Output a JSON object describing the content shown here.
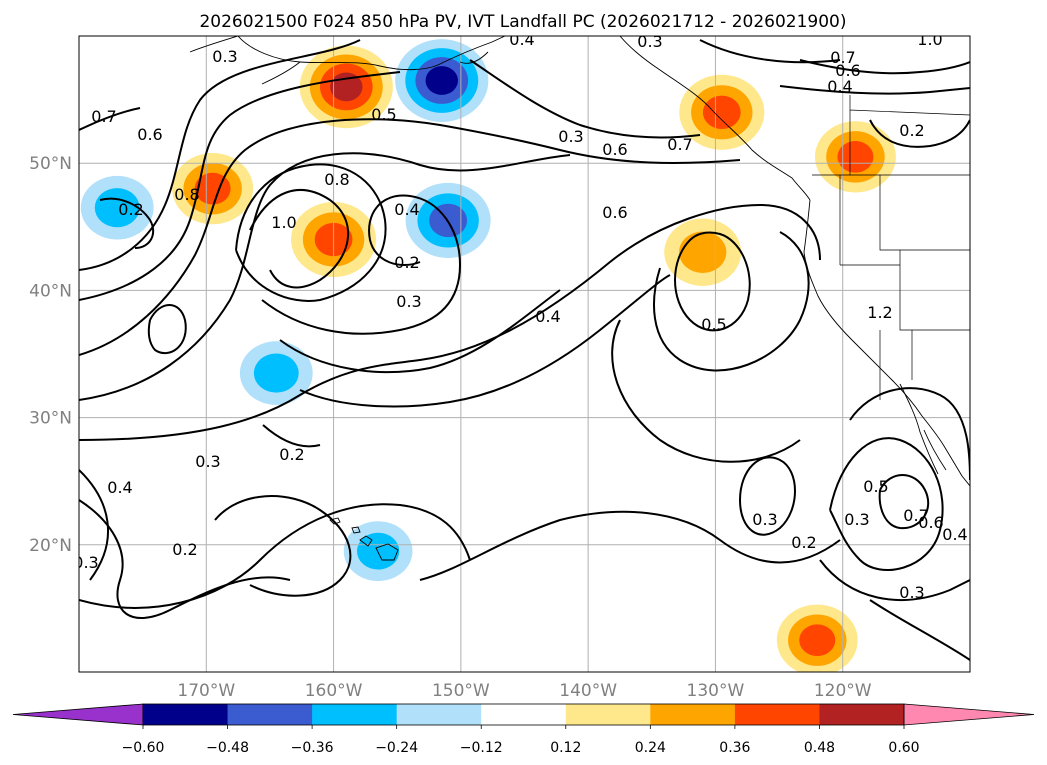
{
  "chart_data": {
    "type": "filled-contour-map",
    "title": "2026021500 F024 850 hPa PV, IVT Landfall PC (2026021712 - 2026021900)",
    "x_axis": {
      "ticks": [
        "170°W",
        "160°W",
        "150°W",
        "140°W",
        "130°W",
        "120°W"
      ],
      "tick_values": [
        -170,
        -160,
        -150,
        -140,
        -130,
        -120
      ],
      "range": [
        -180,
        -110
      ]
    },
    "y_axis": {
      "ticks": [
        "50°N",
        "40°N",
        "30°N",
        "20°N"
      ],
      "tick_values": [
        50,
        40,
        30,
        20
      ],
      "range": [
        10,
        60
      ]
    },
    "grid": true,
    "colorbar": {
      "ticks": [
        "−0.60",
        "−0.48",
        "−0.36",
        "−0.24",
        "−0.12",
        "0.12",
        "0.24",
        "0.36",
        "0.48",
        "0.60"
      ],
      "boundaries": [
        -0.6,
        -0.48,
        -0.36,
        -0.24,
        -0.12,
        0.12,
        0.24,
        0.36,
        0.48,
        0.6
      ],
      "colors": [
        "#9932cc",
        "#00008b",
        "#3b5bd0",
        "#00bfff",
        "#b0e0fa",
        "#ffffff",
        "#ffe88c",
        "#ffa500",
        "#ff4500",
        "#b22222",
        "#ff88b0"
      ],
      "extend": "both"
    },
    "contour_labels": [
      "0.3",
      "0.4",
      "0.3",
      "0.6",
      "0.8",
      "0.7",
      "0.6",
      "0.4",
      "1.0",
      "0.7",
      "0.6",
      "0.5",
      "0.3",
      "0.6",
      "0.7",
      "0.8",
      "1.0",
      "0.4",
      "0.2",
      "0.3",
      "0.4",
      "0.5",
      "0.2",
      "0.3",
      "0.2",
      "0.3",
      "0.5",
      "0.3",
      "0.3",
      "0.2",
      "0.7",
      "0.6",
      "0.4",
      "0.3",
      "0.4",
      "1.2",
      "0.2",
      "0.2"
    ],
    "filled_features": [
      {
        "name": "Gulf of Alaska positive PV",
        "lon": -159,
        "lat": 56,
        "value": 0.55
      },
      {
        "name": "Bering positive PV",
        "lon": -169.5,
        "lat": 48,
        "value": 0.4
      },
      {
        "name": "central N Pacific negative PV",
        "lon": -151.5,
        "lat": 56.5,
        "value": -0.55
      },
      {
        "name": "trough positive PV",
        "lon": -160,
        "lat": 44,
        "value": 0.45
      },
      {
        "name": "cutoff negative PV",
        "lon": -151,
        "lat": 45.5,
        "value": -0.45
      },
      {
        "name": "west edge negative PV",
        "lon": -177,
        "lat": 46.5,
        "value": -0.3
      },
      {
        "name": "BC coast positive PV",
        "lon": -129.5,
        "lat": 54,
        "value": 0.45
      },
      {
        "name": "offshore positive PV",
        "lon": -131,
        "lat": 43,
        "value": 0.35
      },
      {
        "name": "northern Rockies positive PV",
        "lon": -119,
        "lat": 50.5,
        "value": 0.4
      },
      {
        "name": "subtropical negative PV",
        "lon": -164.5,
        "lat": 33.5,
        "value": -0.3
      },
      {
        "name": "Hawaii negative PV",
        "lon": -156.5,
        "lat": 19.5,
        "value": -0.25
      },
      {
        "name": "Baja positive PV",
        "lon": -122,
        "lat": 12.5,
        "value": 0.4
      }
    ]
  }
}
